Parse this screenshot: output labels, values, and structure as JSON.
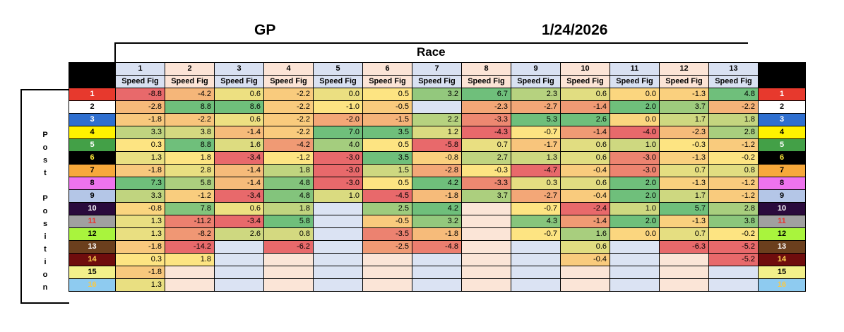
{
  "header": {
    "track": "GP",
    "date": "1/24/2026",
    "race_label": "Race"
  },
  "side_label": [
    "P",
    "o",
    "s",
    "t",
    "",
    "P",
    "o",
    "s",
    "i",
    "t",
    "i",
    "o",
    "n"
  ],
  "race_numbers": [
    "1",
    "2",
    "3",
    "4",
    "5",
    "6",
    "7",
    "8",
    "9",
    "10",
    "11",
    "12",
    "13"
  ],
  "column_label": "Speed Fig",
  "colors": {
    "header_blue": "#d9e1f2",
    "header_peach": "#fce4d6",
    "empty_blue": "#dbe3f3",
    "empty_peach": "#fbe5d7",
    "scale_red": "#e8696b",
    "scale_yellow": "#fde482",
    "scale_green": "#6fbf7b"
  },
  "posts": [
    {
      "label": "1",
      "bg": "#e7392d",
      "fg": "#ffffff"
    },
    {
      "label": "2",
      "bg": "#ffffff",
      "fg": "#000000"
    },
    {
      "label": "3",
      "bg": "#2e6fd0",
      "fg": "#ffffff"
    },
    {
      "label": "4",
      "bg": "#fff200",
      "fg": "#000000"
    },
    {
      "label": "5",
      "bg": "#43a047",
      "fg": "#ffffff"
    },
    {
      "label": "6",
      "bg": "#000000",
      "fg": "#ffeb3b"
    },
    {
      "label": "7",
      "bg": "#f7a83b",
      "fg": "#000000"
    },
    {
      "label": "8",
      "bg": "#ee73ee",
      "fg": "#000000"
    },
    {
      "label": "9",
      "bg": "#b4c6e7",
      "fg": "#000000"
    },
    {
      "label": "10",
      "bg": "#2a0a3c",
      "fg": "#ffffff"
    },
    {
      "label": "11",
      "bg": "#a0a0a0",
      "fg": "#e53935"
    },
    {
      "label": "12",
      "bg": "#a9f43d",
      "fg": "#000000"
    },
    {
      "label": "13",
      "bg": "#6b3f1d",
      "fg": "#ffffff"
    },
    {
      "label": "14",
      "bg": "#6f0d0d",
      "fg": "#ffd54f"
    },
    {
      "label": "15",
      "bg": "#f2f08a",
      "fg": "#000000"
    },
    {
      "label": "16",
      "bg": "#8ecbf0",
      "fg": "#f7c948"
    }
  ],
  "figures": [
    [
      "-8.8",
      "-4.2",
      "0.6",
      "-2.2",
      "0.0",
      "0.5",
      "3.2",
      "6.7",
      "2.3",
      "0.6",
      "0.0",
      "-1.3",
      "4.8"
    ],
    [
      "-2.8",
      "8.8",
      "8.6",
      "-2.2",
      "-1.0",
      "-0.5",
      "",
      "-2.3",
      "-2.7",
      "-1.4",
      "2.0",
      "3.7",
      "-2.2"
    ],
    [
      "-1.8",
      "-2.2",
      "0.6",
      "-2.2",
      "-2.0",
      "-1.5",
      "2.2",
      "-3.3",
      "5.3",
      "2.6",
      "0.0",
      "1.7",
      "1.8"
    ],
    [
      "3.3",
      "3.8",
      "-1.4",
      "-2.2",
      "7.0",
      "3.5",
      "1.2",
      "-4.3",
      "-0.7",
      "-1.4",
      "-4.0",
      "-2.3",
      "2.8"
    ],
    [
      "0.3",
      "8.8",
      "1.6",
      "-4.2",
      "4.0",
      "0.5",
      "-5.8",
      "0.7",
      "-1.7",
      "0.6",
      "1.0",
      "-0.3",
      "-1.2"
    ],
    [
      "1.3",
      "1.8",
      "-3.4",
      "-1.2",
      "-3.0",
      "3.5",
      "-0.8",
      "2.7",
      "1.3",
      "0.6",
      "-3.0",
      "-1.3",
      "-0.2"
    ],
    [
      "-1.8",
      "2.8",
      "-1.4",
      "1.8",
      "-3.0",
      "1.5",
      "-2.8",
      "-0.3",
      "-4.7",
      "-0.4",
      "-3.0",
      "0.7",
      "0.8"
    ],
    [
      "7.3",
      "5.8",
      "-1.4",
      "4.8",
      "-3.0",
      "0.5",
      "4.2",
      "-3.3",
      "0.3",
      "0.6",
      "2.0",
      "-1.3",
      "-1.2"
    ],
    [
      "3.3",
      "-1.2",
      "-3.4",
      "4.8",
      "1.0",
      "-4.5",
      "-1.8",
      "3.7",
      "-2.7",
      "-0.4",
      "2.0",
      "1.7",
      "-1.2"
    ],
    [
      "-0.8",
      "7.8",
      "0.6",
      "1.8",
      "",
      "2.5",
      "4.2",
      "",
      "-0.7",
      "-2.4",
      "1.0",
      "5.7",
      "2.8"
    ],
    [
      "1.3",
      "-11.2",
      "-3.4",
      "5.8",
      "",
      "-0.5",
      "3.2",
      "",
      "4.3",
      "-1.4",
      "2.0",
      "-1.3",
      "3.8"
    ],
    [
      "1.3",
      "-8.2",
      "2.6",
      "0.8",
      "",
      "-3.5",
      "-1.8",
      "",
      "-0.7",
      "1.6",
      "0.0",
      "0.7",
      "-0.2"
    ],
    [
      "-1.8",
      "-14.2",
      "",
      "-6.2",
      "",
      "-2.5",
      "-4.8",
      "",
      "",
      "0.6",
      "",
      "-6.3",
      "-5.2"
    ],
    [
      "0.3",
      "1.8",
      "",
      "",
      "",
      "",
      "",
      "",
      "",
      "-0.4",
      "",
      "",
      "-5.2"
    ],
    [
      "-1.8",
      "",
      "",
      "",
      "",
      "",
      "",
      "",
      "",
      "",
      "",
      "",
      ""
    ],
    [
      "1.3",
      "",
      "",
      "",
      "",
      "",
      "",
      "",
      "",
      "",
      "",
      "",
      ""
    ]
  ]
}
